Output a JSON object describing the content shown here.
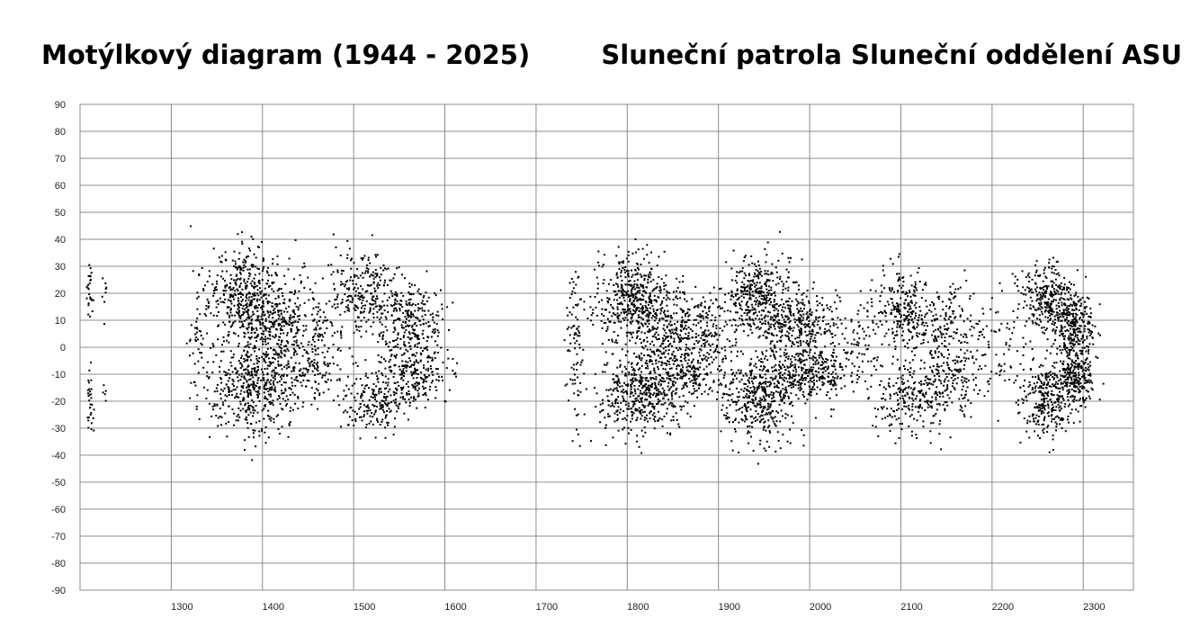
{
  "title_left": "Motýlkový diagram (1944 - 2025)",
  "title_right": "Sluneční patrola Sluneční oddělení ASU",
  "chart_data": {
    "type": "scatter",
    "x_ticks": [
      1300,
      1400,
      1500,
      1600,
      1700,
      1800,
      1900,
      2000,
      2100,
      2200,
      2300
    ],
    "y_ticks": [
      90,
      80,
      70,
      60,
      50,
      40,
      30,
      20,
      10,
      0,
      -10,
      -20,
      -30,
      -40,
      -50,
      -60,
      -70,
      -80,
      -90
    ],
    "xlim": [
      1200,
      2355
    ],
    "ylim": [
      -90,
      90
    ],
    "grid": true,
    "point_color": "#000000",
    "clusters": [
      {
        "x": 1210,
        "y": 20,
        "sx": 2,
        "sy": 5,
        "n": 25
      },
      {
        "x": 1210,
        "y": -20,
        "sx": 2,
        "sy": 6,
        "n": 30
      },
      {
        "x": 1226,
        "y": 20,
        "sx": 2,
        "sy": 5,
        "n": 8
      },
      {
        "x": 1226,
        "y": -16,
        "sx": 2,
        "sy": 2,
        "n": 5
      },
      {
        "x": 1330,
        "y": 5,
        "sx": 5,
        "sy": 15,
        "n": 50
      },
      {
        "x": 1380,
        "y": 20,
        "sx": 20,
        "sy": 9,
        "n": 420
      },
      {
        "x": 1420,
        "y": 10,
        "sx": 25,
        "sy": 7,
        "n": 280
      },
      {
        "x": 1385,
        "y": -15,
        "sx": 22,
        "sy": 9,
        "n": 420
      },
      {
        "x": 1430,
        "y": -10,
        "sx": 25,
        "sy": 7,
        "n": 220
      },
      {
        "x": 1460,
        "y": 0,
        "sx": 20,
        "sy": 10,
        "n": 80
      },
      {
        "x": 1510,
        "y": 20,
        "sx": 20,
        "sy": 8,
        "n": 260
      },
      {
        "x": 1560,
        "y": 10,
        "sx": 20,
        "sy": 7,
        "n": 260
      },
      {
        "x": 1520,
        "y": -20,
        "sx": 20,
        "sy": 6,
        "n": 200
      },
      {
        "x": 1565,
        "y": -10,
        "sx": 18,
        "sy": 6,
        "n": 220
      },
      {
        "x": 1742,
        "y": 0,
        "sx": 5,
        "sy": 15,
        "n": 90
      },
      {
        "x": 1805,
        "y": 18,
        "sx": 20,
        "sy": 8,
        "n": 450
      },
      {
        "x": 1855,
        "y": 8,
        "sx": 25,
        "sy": 7,
        "n": 300
      },
      {
        "x": 1810,
        "y": -18,
        "sx": 22,
        "sy": 8,
        "n": 400
      },
      {
        "x": 1855,
        "y": -10,
        "sx": 25,
        "sy": 7,
        "n": 300
      },
      {
        "x": 1890,
        "y": 2,
        "sx": 15,
        "sy": 8,
        "n": 80
      },
      {
        "x": 1945,
        "y": 18,
        "sx": 20,
        "sy": 8,
        "n": 400
      },
      {
        "x": 1990,
        "y": 8,
        "sx": 22,
        "sy": 6,
        "n": 300
      },
      {
        "x": 1945,
        "y": -18,
        "sx": 20,
        "sy": 8,
        "n": 420
      },
      {
        "x": 2000,
        "y": -8,
        "sx": 25,
        "sy": 6,
        "n": 320
      },
      {
        "x": 2050,
        "y": 0,
        "sx": 12,
        "sy": 8,
        "n": 60
      },
      {
        "x": 2100,
        "y": 15,
        "sx": 20,
        "sy": 7,
        "n": 240
      },
      {
        "x": 2150,
        "y": 8,
        "sx": 25,
        "sy": 7,
        "n": 200
      },
      {
        "x": 2110,
        "y": -18,
        "sx": 20,
        "sy": 7,
        "n": 220
      },
      {
        "x": 2155,
        "y": -10,
        "sx": 25,
        "sy": 6,
        "n": 180
      },
      {
        "x": 2215,
        "y": 0,
        "sx": 15,
        "sy": 12,
        "n": 40
      },
      {
        "x": 2260,
        "y": 18,
        "sx": 15,
        "sy": 7,
        "n": 300
      },
      {
        "x": 2290,
        "y": 8,
        "sx": 10,
        "sy": 6,
        "n": 250
      },
      {
        "x": 2260,
        "y": -18,
        "sx": 15,
        "sy": 7,
        "n": 300
      },
      {
        "x": 2290,
        "y": -10,
        "sx": 10,
        "sy": 6,
        "n": 250
      }
    ]
  }
}
